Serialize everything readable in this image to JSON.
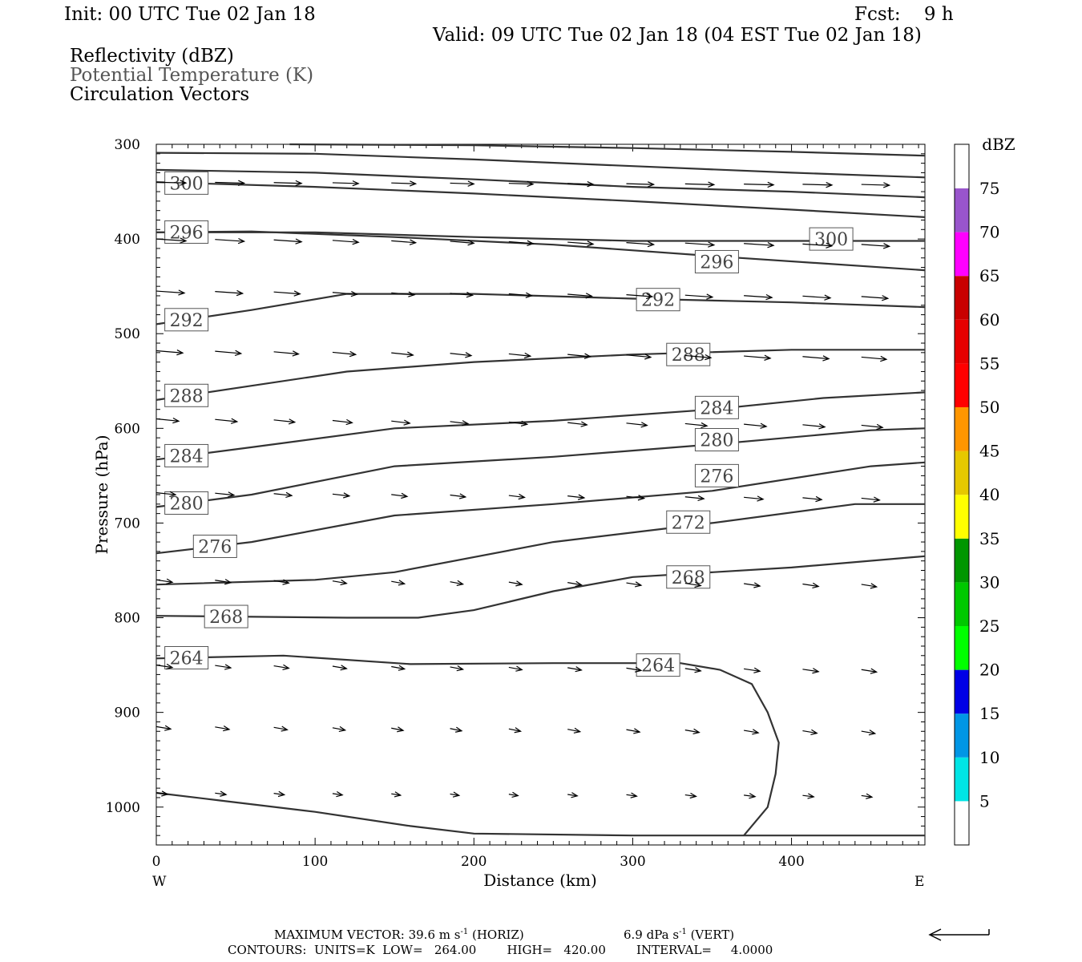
{
  "header": {
    "init": "Init: 00 UTC Tue 02 Jan 18",
    "fcst": "Fcst:    9 h",
    "valid": "Valid: 09 UTC Tue 02 Jan 18 (04 EST Tue 02 Jan 18)",
    "fields": [
      "Reflectivity (dBZ)",
      "Potential Temperature (K)",
      "Circulation Vectors"
    ]
  },
  "footer": {
    "max_vector": "MAXIMUM VECTOR:  39.6 m s",
    "max_vector_exp": "-1",
    "max_vector_h": " (HORIZ)",
    "vert": "6.9 dPa s",
    "vert_exp": "-1",
    "vert_tail": " (VERT)",
    "contours": "CONTOURS:  UNITS=K  LOW=   264.00        HIGH=   420.00        INTERVAL=     4.0000"
  },
  "colors": {
    "contour": "#333333",
    "frame": "#000000"
  },
  "chart_data": {
    "type": "cross-section",
    "xlabel": "Distance (km)",
    "ylabel": "Pressure (hPa)",
    "x_ticks": [
      "0",
      "100",
      "200",
      "300",
      "400"
    ],
    "x_end_labels": [
      "W",
      "E"
    ],
    "y_ticks": [
      "300",
      "400",
      "500",
      "600",
      "700",
      "800",
      "900",
      "1000"
    ],
    "xlim": [
      0,
      484
    ],
    "ylim": [
      300,
      1040
    ],
    "contours": [
      {
        "value": 304,
        "label": "",
        "points": [
          [
            84,
            300
          ],
          [
            200,
            301
          ],
          [
            300,
            304
          ],
          [
            400,
            308
          ],
          [
            484,
            312
          ]
        ]
      },
      {
        "value": 304,
        "label": "",
        "points": [
          [
            0,
            309
          ],
          [
            100,
            310
          ],
          [
            200,
            316
          ],
          [
            300,
            323
          ],
          [
            400,
            330
          ],
          [
            484,
            335
          ]
        ]
      },
      {
        "value": 302,
        "label": "",
        "points": [
          [
            0,
            327
          ],
          [
            100,
            330
          ],
          [
            200,
            337
          ],
          [
            300,
            345
          ],
          [
            400,
            350
          ],
          [
            484,
            356
          ]
        ]
      },
      {
        "value": 300,
        "label": "300",
        "lx": 19,
        "points": [
          [
            0,
            340
          ],
          [
            100,
            345
          ],
          [
            200,
            352
          ],
          [
            300,
            360
          ],
          [
            400,
            369
          ],
          [
            484,
            377
          ]
        ]
      },
      {
        "value": 300,
        "label": "300",
        "lx": 425,
        "points": [
          [
            0,
            393
          ],
          [
            100,
            393
          ],
          [
            200,
            398
          ],
          [
            300,
            402
          ],
          [
            400,
            402
          ],
          [
            484,
            402
          ]
        ]
      },
      {
        "value": 296,
        "label": "296",
        "lx": 19,
        "points": [
          [
            0,
            393
          ],
          [
            60,
            392
          ],
          [
            150,
            398
          ],
          [
            250,
            406
          ],
          [
            350,
            418
          ],
          [
            484,
            433
          ]
        ]
      },
      {
        "value": 292,
        "label": "292",
        "lx": 19,
        "points": [
          [
            0,
            490
          ],
          [
            60,
            475
          ],
          [
            120,
            458
          ],
          [
            200,
            458
          ],
          [
            300,
            463
          ],
          [
            400,
            467
          ],
          [
            484,
            472
          ]
        ]
      },
      {
        "value": 288,
        "label": "288",
        "lx": 19,
        "points": [
          [
            0,
            570
          ],
          [
            60,
            555
          ],
          [
            120,
            540
          ],
          [
            200,
            530
          ],
          [
            300,
            522
          ],
          [
            400,
            517
          ],
          [
            484,
            517
          ]
        ]
      },
      {
        "value": 284,
        "label": "284",
        "lx": 19,
        "points": [
          [
            0,
            633
          ],
          [
            60,
            620
          ],
          [
            150,
            600
          ],
          [
            250,
            592
          ],
          [
            350,
            580
          ],
          [
            420,
            568
          ],
          [
            484,
            562
          ]
        ]
      },
      {
        "value": 280,
        "label": "280",
        "lx": 19,
        "points": [
          [
            0,
            683
          ],
          [
            60,
            670
          ],
          [
            150,
            640
          ],
          [
            250,
            630
          ],
          [
            350,
            617
          ],
          [
            450,
            602
          ],
          [
            484,
            600
          ]
        ]
      },
      {
        "value": 276,
        "label": "276",
        "lx": 37,
        "points": [
          [
            0,
            732
          ],
          [
            60,
            720
          ],
          [
            150,
            692
          ],
          [
            250,
            680
          ],
          [
            350,
            666
          ],
          [
            450,
            640
          ],
          [
            484,
            636
          ]
        ]
      },
      {
        "value": 272,
        "label": "272",
        "lx": 323,
        "points": [
          [
            0,
            765
          ],
          [
            100,
            760
          ],
          [
            150,
            752
          ],
          [
            250,
            720
          ],
          [
            350,
            700
          ],
          [
            440,
            680
          ],
          [
            484,
            680
          ]
        ]
      },
      {
        "value": 268,
        "label": "268",
        "lx": 44,
        "points": [
          [
            0,
            798
          ],
          [
            120,
            800
          ],
          [
            165,
            800
          ],
          [
            200,
            792
          ],
          [
            250,
            772
          ],
          [
            300,
            757
          ],
          [
            400,
            747
          ],
          [
            484,
            735
          ]
        ]
      },
      {
        "value": 264,
        "label": "264",
        "lx": 19,
        "points": [
          [
            0,
            843
          ],
          [
            80,
            840
          ],
          [
            160,
            849
          ],
          [
            250,
            848
          ],
          [
            330,
            848
          ]
        ]
      },
      {
        "value": 264,
        "label": "",
        "points": [
          [
            330,
            848
          ],
          [
            355,
            855
          ],
          [
            375,
            870
          ],
          [
            385,
            900
          ],
          [
            392,
            932
          ],
          [
            390,
            965
          ],
          [
            385,
            1000
          ],
          [
            370,
            1030
          ]
        ]
      },
      {
        "value": 260,
        "label": "",
        "points": [
          [
            0,
            985
          ],
          [
            40,
            993
          ],
          [
            100,
            1005
          ],
          [
            160,
            1020
          ],
          [
            200,
            1028
          ],
          [
            300,
            1030
          ],
          [
            400,
            1030
          ],
          [
            484,
            1030
          ]
        ]
      }
    ],
    "labels_only": [
      {
        "label": "296",
        "x": 353,
        "p": 424
      },
      {
        "label": "292",
        "x": 316,
        "p": 464
      },
      {
        "label": "288",
        "x": 335,
        "p": 522
      },
      {
        "label": "284",
        "x": 353,
        "p": 578
      },
      {
        "label": "280",
        "x": 353,
        "p": 612
      },
      {
        "label": "276",
        "x": 353,
        "p": 650
      },
      {
        "label": "272",
        "x": 335,
        "p": 699
      },
      {
        "label": "268",
        "x": 335,
        "p": 757
      },
      {
        "label": "264",
        "x": 316,
        "p": 850
      },
      {
        "label": "300",
        "x": 425,
        "p": 400
      }
    ],
    "vector_rows": [
      {
        "p": 340,
        "len": 37,
        "dy": 0.5
      },
      {
        "p": 400,
        "len": 37,
        "dy": 1.2
      },
      {
        "p": 455,
        "len": 35,
        "dy": 1.2
      },
      {
        "p": 518,
        "len": 33,
        "dy": 1.4
      },
      {
        "p": 590,
        "len": 28,
        "dy": 1.4
      },
      {
        "p": 668,
        "len": 24,
        "dy": 1.2
      },
      {
        "p": 760,
        "len": 20,
        "dy": 1.0
      },
      {
        "p": 850,
        "len": 20,
        "dy": 1.0
      },
      {
        "p": 915,
        "len": 18,
        "dy": 1.0
      },
      {
        "p": 985,
        "len": 14,
        "dy": 0.6
      }
    ],
    "vector_spacing_km": 37,
    "colorbar": {
      "unit": "dBZ",
      "labels": [
        "5",
        "10",
        "15",
        "20",
        "25",
        "30",
        "35",
        "40",
        "45",
        "50",
        "55",
        "60",
        "65",
        "70",
        "75"
      ],
      "colors": [
        "#ffffff",
        "#00e5e5",
        "#0096e5",
        "#0000e6",
        "#00ff00",
        "#00c800",
        "#009600",
        "#ffff00",
        "#e6c800",
        "#ff9600",
        "#ff0000",
        "#e60000",
        "#c80000",
        "#ff00ff",
        "#9955cc",
        "#ffffff"
      ]
    }
  }
}
